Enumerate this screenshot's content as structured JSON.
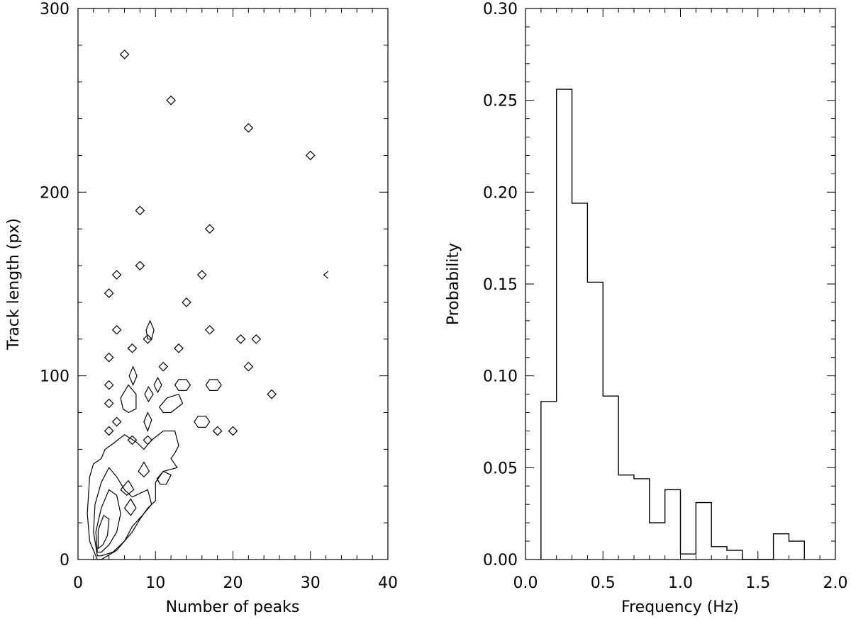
{
  "chart_data": [
    {
      "type": "scatter",
      "xlabel": "Number of peaks",
      "ylabel": "Track length (px)",
      "xlim": [
        0,
        40
      ],
      "ylim": [
        0,
        300
      ],
      "x_ticks": [
        "0",
        "10",
        "20",
        "30",
        "40"
      ],
      "y_ticks": [
        "0",
        "100",
        "200",
        "300"
      ],
      "points": [
        {
          "x": 6,
          "y": 275
        },
        {
          "x": 12,
          "y": 250
        },
        {
          "x": 22,
          "y": 235
        },
        {
          "x": 30,
          "y": 220
        },
        {
          "x": 8,
          "y": 190
        },
        {
          "x": 17,
          "y": 180
        },
        {
          "x": 8,
          "y": 160
        },
        {
          "x": 5,
          "y": 155
        },
        {
          "x": 16,
          "y": 155
        },
        {
          "x": 4,
          "y": 145
        },
        {
          "x": 14,
          "y": 140
        },
        {
          "x": 5,
          "y": 125
        },
        {
          "x": 17,
          "y": 125
        },
        {
          "x": 9,
          "y": 120
        },
        {
          "x": 21,
          "y": 120
        },
        {
          "x": 23,
          "y": 120
        },
        {
          "x": 7,
          "y": 115
        },
        {
          "x": 13,
          "y": 115
        },
        {
          "x": 4,
          "y": 110
        },
        {
          "x": 11,
          "y": 105
        },
        {
          "x": 22,
          "y": 105
        },
        {
          "x": 4,
          "y": 95
        },
        {
          "x": 25,
          "y": 90
        },
        {
          "x": 4,
          "y": 85
        },
        {
          "x": 5,
          "y": 75
        },
        {
          "x": 4,
          "y": 70
        },
        {
          "x": 18,
          "y": 70
        },
        {
          "x": 20,
          "y": 70
        },
        {
          "x": 7,
          "y": 65
        },
        {
          "x": 9,
          "y": 65
        }
      ],
      "contours": [
        {
          "points": [
            [
              2.5,
              0
            ],
            [
              1.5,
              10
            ],
            [
              1.2,
              25
            ],
            [
              1.5,
              45
            ],
            [
              2,
              52
            ],
            [
              3,
              55
            ],
            [
              3.5,
              60
            ],
            [
              4.5,
              63
            ],
            [
              6,
              68
            ],
            [
              7.5,
              64
            ],
            [
              8.5,
              60
            ],
            [
              9.5,
              65
            ],
            [
              11,
              70
            ],
            [
              12.5,
              70
            ],
            [
              13,
              62
            ],
            [
              12.5,
              58
            ],
            [
              12,
              55
            ],
            [
              12.8,
              50
            ],
            [
              11,
              48
            ],
            [
              10,
              42
            ],
            [
              10,
              32
            ],
            [
              9,
              28
            ],
            [
              8,
              22
            ],
            [
              7,
              15
            ],
            [
              5,
              5
            ],
            [
              3,
              0
            ]
          ]
        },
        {
          "points": [
            [
              2.5,
              2
            ],
            [
              2,
              15
            ],
            [
              2.2,
              30
            ],
            [
              3,
              42
            ],
            [
              4,
              50
            ],
            [
              5,
              45
            ],
            [
              6,
              38
            ],
            [
              7,
              34
            ],
            [
              8,
              36
            ],
            [
              9,
              38
            ],
            [
              9.5,
              30
            ],
            [
              8.5,
              25
            ],
            [
              7,
              18
            ],
            [
              6,
              10
            ],
            [
              4.5,
              4
            ],
            [
              3,
              2
            ]
          ]
        },
        {
          "points": [
            [
              2.5,
              4
            ],
            [
              2.3,
              15
            ],
            [
              3,
              28
            ],
            [
              4,
              38
            ],
            [
              5,
              35
            ],
            [
              5.5,
              25
            ],
            [
              5,
              15
            ],
            [
              4,
              8
            ],
            [
              3,
              4
            ]
          ]
        },
        {
          "points": [
            [
              2.6,
              6
            ],
            [
              2.6,
              16
            ],
            [
              3.3,
              24
            ],
            [
              4,
              22
            ],
            [
              3.8,
              13
            ],
            [
              3.2,
              8
            ]
          ]
        },
        {
          "points": [
            [
              6,
              28
            ],
            [
              6.8,
              33
            ],
            [
              7.5,
              28
            ],
            [
              6.8,
              24
            ]
          ]
        },
        {
          "points": [
            [
              5.5,
              38
            ],
            [
              6.5,
              43
            ],
            [
              7.2,
              38
            ],
            [
              6.3,
              35
            ]
          ]
        },
        {
          "points": [
            [
              7.8,
              48
            ],
            [
              8.5,
              53
            ],
            [
              9.2,
              48
            ],
            [
              8.5,
              45
            ]
          ]
        },
        {
          "points": [
            [
              10.2,
              44
            ],
            [
              11,
              48
            ],
            [
              12,
              46
            ],
            [
              11.4,
              41
            ],
            [
              10.6,
              41
            ]
          ]
        },
        {
          "points": [
            [
              5.5,
              88
            ],
            [
              6.5,
              95
            ],
            [
              7.5,
              90
            ],
            [
              7.5,
              82
            ],
            [
              6.5,
              80
            ],
            [
              5.8,
              82
            ]
          ]
        },
        {
          "points": [
            [
              8.5,
              75
            ],
            [
              9,
              80
            ],
            [
              9.5,
              76
            ],
            [
              9,
              70
            ]
          ]
        },
        {
          "points": [
            [
              10.5,
              83
            ],
            [
              11.5,
              88
            ],
            [
              13,
              90
            ],
            [
              13.5,
              85
            ],
            [
              12,
              80
            ],
            [
              11,
              80
            ]
          ]
        },
        {
          "points": [
            [
              15,
              75
            ],
            [
              15.5,
              78
            ],
            [
              16.5,
              78
            ],
            [
              17,
              75
            ],
            [
              16.5,
              72
            ],
            [
              15.5,
              72
            ]
          ]
        },
        {
          "points": [
            [
              12.5,
              95
            ],
            [
              13,
              98
            ],
            [
              14,
              98
            ],
            [
              14.5,
              95
            ],
            [
              14,
              92
            ],
            [
              13,
              92
            ]
          ]
        },
        {
          "points": [
            [
              16.5,
              95
            ],
            [
              17,
              98
            ],
            [
              18,
              98
            ],
            [
              18.5,
              95
            ],
            [
              18,
              92
            ],
            [
              17,
              92
            ]
          ]
        },
        {
          "points": [
            [
              8.8,
              125
            ],
            [
              9.3,
              130
            ],
            [
              9.8,
              125
            ],
            [
              9.5,
              120
            ],
            [
              9,
              120
            ]
          ]
        },
        {
          "points": [
            [
              9.8,
              95
            ],
            [
              10.3,
              99
            ],
            [
              10.8,
              95
            ],
            [
              10.3,
              91
            ]
          ]
        },
        {
          "points": [
            [
              8.6,
              90
            ],
            [
              9.1,
              94
            ],
            [
              9.7,
              90
            ],
            [
              9.1,
              86
            ]
          ]
        },
        {
          "points": [
            [
              6.6,
              100
            ],
            [
              7.1,
              105
            ],
            [
              7.6,
              100
            ],
            [
              7.1,
              95
            ]
          ]
        }
      ],
      "outlier_marker": {
        "x": 32,
        "y": 155
      }
    },
    {
      "type": "bar",
      "xlabel": "Frequency (Hz)",
      "ylabel": "Probability",
      "xlim": [
        0.0,
        2.0
      ],
      "ylim": [
        0.0,
        0.3
      ],
      "x_ticks": [
        "0.0",
        "0.5",
        "1.0",
        "1.5",
        "2.0"
      ],
      "y_ticks": [
        "0.00",
        "0.05",
        "0.10",
        "0.15",
        "0.20",
        "0.25",
        "0.30"
      ],
      "bin_edges": [
        0.1,
        0.2,
        0.3,
        0.4,
        0.5,
        0.6,
        0.7,
        0.8,
        0.9,
        1.0,
        1.1,
        1.2,
        1.3,
        1.4,
        1.5,
        1.6,
        1.7,
        1.8
      ],
      "values": [
        0.086,
        0.256,
        0.194,
        0.151,
        0.089,
        0.046,
        0.044,
        0.02,
        0.038,
        0.003,
        0.031,
        0.007,
        0.005,
        0.0,
        0.0,
        0.014,
        0.01
      ]
    }
  ]
}
